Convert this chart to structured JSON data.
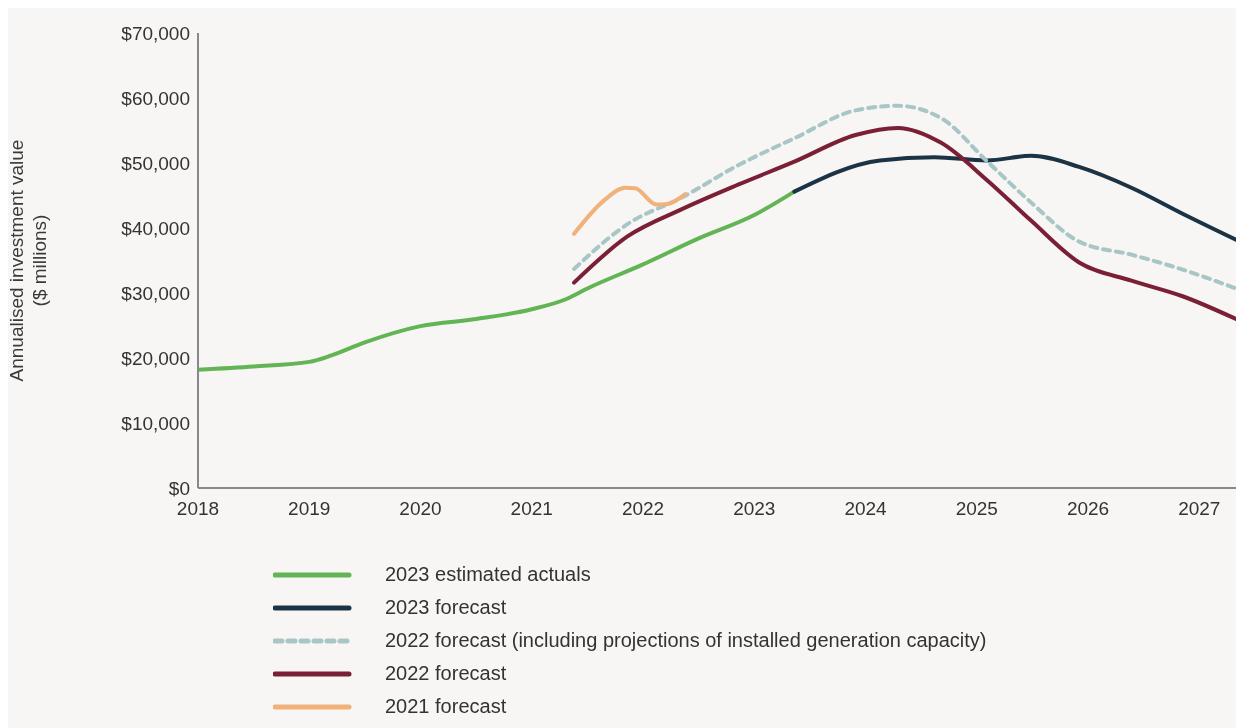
{
  "chart_data": {
    "type": "line",
    "ylabel": "Annualised investment value\n($ millions)",
    "xlim": [
      2018,
      2027.33
    ],
    "xticks": [
      2018,
      2019,
      2020,
      2021,
      2022,
      2023,
      2024,
      2025,
      2026,
      2027
    ],
    "ylim": [
      0,
      70000
    ],
    "yticks": [
      {
        "value": 0,
        "label": "$0"
      },
      {
        "value": 10000,
        "label": "$10,000"
      },
      {
        "value": 20000,
        "label": "$20,000"
      },
      {
        "value": 30000,
        "label": "$30,000"
      },
      {
        "value": 40000,
        "label": "$40,000"
      },
      {
        "value": 50000,
        "label": "$50,000"
      },
      {
        "value": 60000,
        "label": "$60,000"
      },
      {
        "value": 70000,
        "label": "$70,000"
      }
    ],
    "grid": false,
    "legend": "bottom",
    "marker": "none",
    "series": [
      {
        "name": "2023 estimated actuals",
        "color": "#62b455",
        "x": [
          2018,
          2018.5,
          2019,
          2019.2,
          2019.5,
          2020,
          2020.5,
          2021,
          2021.3,
          2021.5,
          2022,
          2022.5,
          2023,
          2023.36
        ],
        "values": [
          18200,
          18700,
          19400,
          20400,
          22400,
          24900,
          26000,
          27500,
          29000,
          30700,
          34400,
          38400,
          42000,
          45600
        ]
      },
      {
        "name": "2023 forecast",
        "color": "#1c3345",
        "x": [
          2023.36,
          2024.13,
          2024.62,
          2025.09,
          2025.49,
          2025.92,
          2026.39,
          2026.85,
          2027.33
        ],
        "values": [
          45600,
          50400,
          50900,
          50400,
          51100,
          49400,
          46200,
          42200,
          38200
        ]
      },
      {
        "name": "2022 forecast (including projections of installed generation capacity)",
        "color": "#a9c6c6",
        "line_style": "dashed",
        "x": [
          2021.38,
          2021.86,
          2022.35,
          2022.86,
          2023.36,
          2023.91,
          2024.29,
          2024.68,
          2025.09,
          2025.49,
          2025.92,
          2026.39,
          2026.85,
          2027.33
        ],
        "values": [
          33700,
          40600,
          44700,
          49700,
          53800,
          58100,
          58800,
          56900,
          50300,
          43900,
          37900,
          35900,
          33600,
          30700
        ]
      },
      {
        "name": "2022 forecast",
        "color": "#7a1f35",
        "x": [
          2021.38,
          2021.86,
          2022.35,
          2022.86,
          2023.36,
          2023.91,
          2024.29,
          2024.68,
          2025.09,
          2025.49,
          2025.92,
          2026.39,
          2026.85,
          2027.33
        ],
        "values": [
          31600,
          38700,
          42900,
          46700,
          50200,
          54300,
          55400,
          53100,
          47400,
          41100,
          34700,
          31900,
          29500,
          26000
        ]
      },
      {
        "name": "2021 forecast",
        "color": "#f0b27a",
        "x": [
          2021.38,
          2021.64,
          2021.84,
          2021.93,
          2022.12,
          2022.22,
          2022.38
        ],
        "values": [
          39100,
          44100,
          46200,
          46100,
          43600,
          43700,
          45200
        ]
      }
    ]
  }
}
